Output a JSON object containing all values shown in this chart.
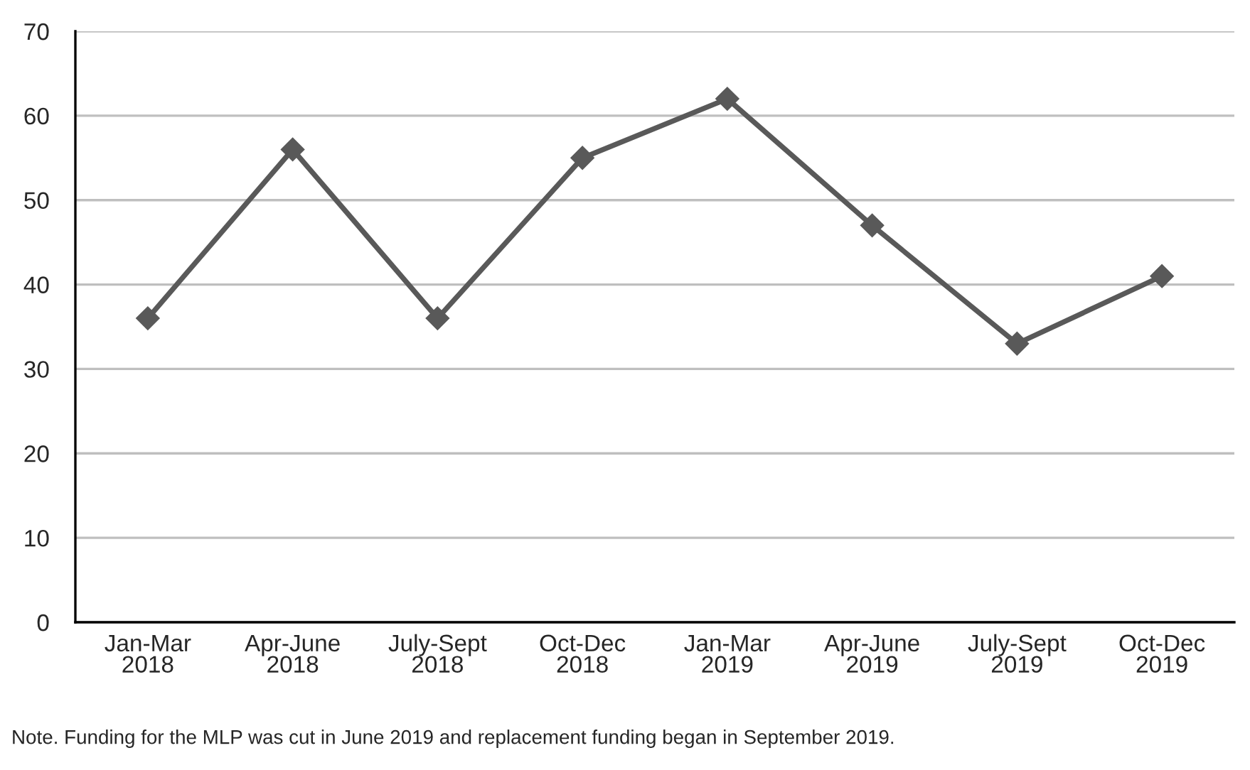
{
  "chart_data": {
    "type": "line",
    "categories": [
      "Jan-Mar\n2018",
      "Apr-June\n2018",
      "July-Sept\n2018",
      "Oct-Dec\n2018",
      "Jan-Mar\n2019",
      "Apr-June\n2019",
      "July-Sept\n2019",
      "Oct-Dec\n2019"
    ],
    "series": [
      {
        "color": "#595959",
        "values": [
          36,
          56,
          36,
          55,
          62,
          47,
          33,
          41
        ]
      }
    ],
    "ylim": [
      0,
      70
    ],
    "yticks": [
      0,
      10,
      20,
      30,
      40,
      50,
      60,
      70
    ],
    "grid": "y",
    "marker": "diamond",
    "line_style": "solid",
    "annotations": [
      "Note. Funding for the MLP was cut in June 2019 and replacement funding began in September 2019."
    ]
  }
}
